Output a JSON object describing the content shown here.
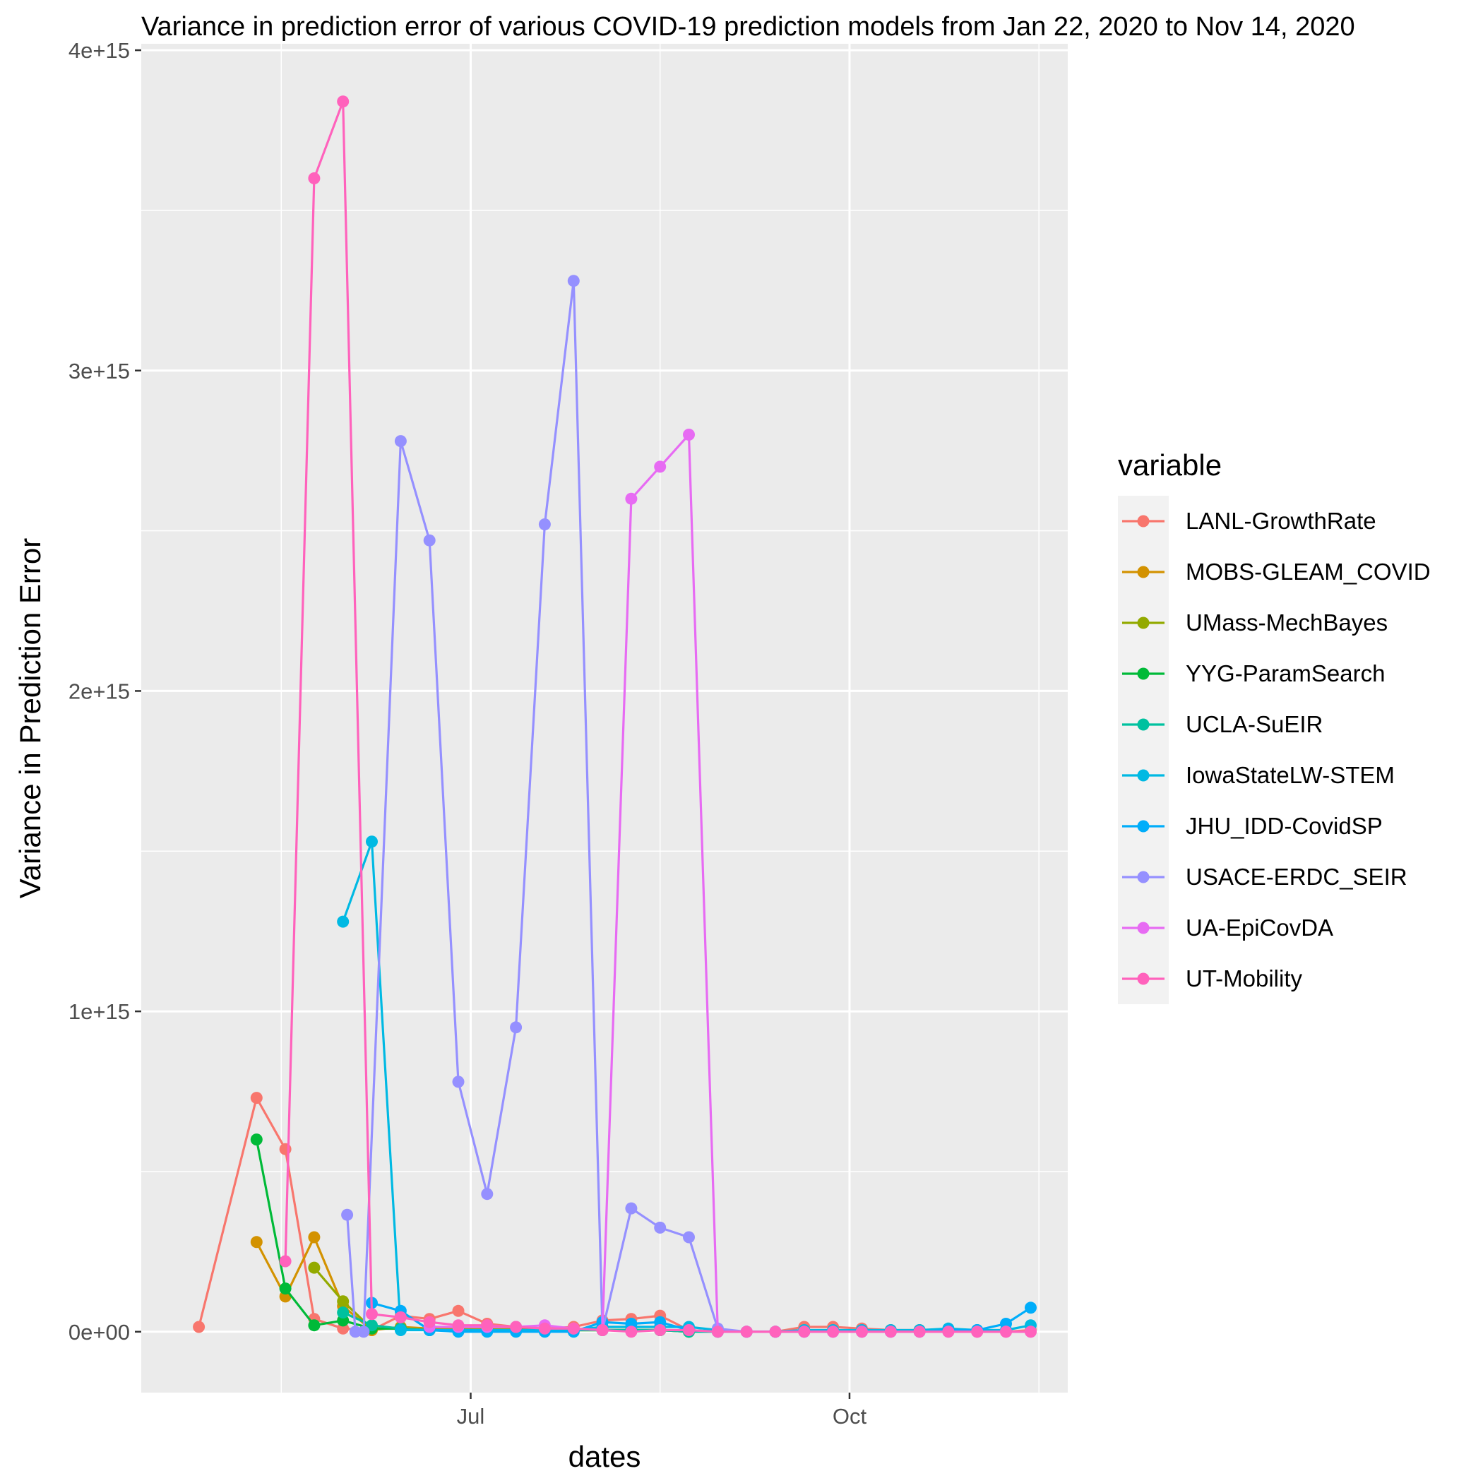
{
  "chart_data": {
    "type": "line",
    "title": "Variance in prediction error of various COVID-19 prediction models from Jan 22, 2020 to Nov 14, 2020",
    "xlabel": "dates",
    "ylabel": "Variance in Prediction Error",
    "xlim": [
      "2020-04-12",
      "2020-11-23"
    ],
    "ylim": [
      -190000000000000.0,
      4020000000000000.0
    ],
    "x_ticks": [
      {
        "date": "2020-07-01",
        "label": "Jul"
      },
      {
        "date": "2020-10-01",
        "label": "Oct"
      }
    ],
    "y_ticks": [
      {
        "value": 0,
        "label": "0e+00"
      },
      {
        "value": 1000000000000000.0,
        "label": "1e+15"
      },
      {
        "value": 2000000000000000.0,
        "label": "2e+15"
      },
      {
        "value": 3000000000000000.0,
        "label": "3e+15"
      },
      {
        "value": 4000000000000000.0,
        "label": "4e+15"
      }
    ],
    "grid": true,
    "legend": {
      "title": "variable",
      "position": "right"
    },
    "series": [
      {
        "name": "LANL-GrowthRate",
        "color": "#F8766D",
        "points": [
          [
            "2020-04-26",
            15000000000000.0
          ],
          [
            "2020-05-10",
            730000000000000.0
          ],
          [
            "2020-05-17",
            570000000000000.0
          ],
          [
            "2020-05-24",
            40000000000000.0
          ],
          [
            "2020-05-31",
            10000000000000.0
          ],
          [
            "2020-06-07",
            5000000000000.0
          ],
          [
            "2020-06-14",
            50000000000000.0
          ],
          [
            "2020-06-21",
            40000000000000.0
          ],
          [
            "2020-06-28",
            65000000000000.0
          ],
          [
            "2020-07-05",
            25000000000000.0
          ],
          [
            "2020-07-12",
            15000000000000.0
          ],
          [
            "2020-07-19",
            10000000000000.0
          ],
          [
            "2020-07-26",
            15000000000000.0
          ],
          [
            "2020-08-02",
            35000000000000.0
          ],
          [
            "2020-08-09",
            40000000000000.0
          ],
          [
            "2020-08-16",
            50000000000000.0
          ],
          [
            "2020-08-23",
            5000000000000.0
          ],
          [
            "2020-08-30",
            0
          ],
          [
            "2020-09-06",
            0
          ],
          [
            "2020-09-13",
            0
          ],
          [
            "2020-09-20",
            15000000000000.0
          ],
          [
            "2020-09-27",
            15000000000000.0
          ],
          [
            "2020-10-04",
            10000000000000.0
          ],
          [
            "2020-10-11",
            5000000000000.0
          ],
          [
            "2020-10-18",
            5000000000000.0
          ],
          [
            "2020-10-25",
            5000000000000.0
          ],
          [
            "2020-11-01",
            0
          ],
          [
            "2020-11-08",
            0
          ],
          [
            "2020-11-14",
            5000000000000.0
          ]
        ]
      },
      {
        "name": "MOBS-GLEAM_COVID",
        "color": "#D39200",
        "points": [
          [
            "2020-05-10",
            280000000000000.0
          ],
          [
            "2020-05-17",
            110000000000000.0
          ],
          [
            "2020-05-24",
            295000000000000.0
          ],
          [
            "2020-05-31",
            80000000000000.0
          ],
          [
            "2020-06-07",
            5000000000000.0
          ],
          [
            "2020-06-14",
            15000000000000.0
          ],
          [
            "2020-06-21",
            10000000000000.0
          ],
          [
            "2020-06-28",
            10000000000000.0
          ],
          [
            "2020-07-05",
            10000000000000.0
          ],
          [
            "2020-07-12",
            10000000000000.0
          ],
          [
            "2020-07-19",
            5000000000000.0
          ],
          [
            "2020-07-26",
            5000000000000.0
          ],
          [
            "2020-08-02",
            5000000000000.0
          ],
          [
            "2020-08-09",
            5000000000000.0
          ],
          [
            "2020-08-16",
            5000000000000.0
          ],
          [
            "2020-08-23",
            0
          ]
        ]
      },
      {
        "name": "UMass-MechBayes",
        "color": "#93AA00",
        "points": [
          [
            "2020-05-24",
            200000000000000.0
          ],
          [
            "2020-05-31",
            95000000000000.0
          ],
          [
            "2020-06-07",
            10000000000000.0
          ],
          [
            "2020-06-14",
            10000000000000.0
          ],
          [
            "2020-06-21",
            5000000000000.0
          ],
          [
            "2020-06-28",
            5000000000000.0
          ],
          [
            "2020-07-05",
            5000000000000.0
          ],
          [
            "2020-07-12",
            5000000000000.0
          ],
          [
            "2020-07-19",
            5000000000000.0
          ],
          [
            "2020-07-26",
            5000000000000.0
          ],
          [
            "2020-08-02",
            5000000000000.0
          ],
          [
            "2020-08-09",
            5000000000000.0
          ],
          [
            "2020-08-16",
            5000000000000.0
          ],
          [
            "2020-08-23",
            0
          ]
        ]
      },
      {
        "name": "YYG-ParamSearch",
        "color": "#00BA38",
        "points": [
          [
            "2020-05-10",
            600000000000000.0
          ],
          [
            "2020-05-17",
            135000000000000.0
          ],
          [
            "2020-05-24",
            20000000000000.0
          ],
          [
            "2020-05-31",
            35000000000000.0
          ],
          [
            "2020-06-07",
            10000000000000.0
          ],
          [
            "2020-06-14",
            10000000000000.0
          ],
          [
            "2020-06-21",
            5000000000000.0
          ],
          [
            "2020-06-28",
            5000000000000.0
          ],
          [
            "2020-07-05",
            5000000000000.0
          ],
          [
            "2020-07-12",
            5000000000000.0
          ],
          [
            "2020-07-19",
            5000000000000.0
          ],
          [
            "2020-07-26",
            5000000000000.0
          ],
          [
            "2020-08-02",
            5000000000000.0
          ],
          [
            "2020-08-09",
            5000000000000.0
          ],
          [
            "2020-08-16",
            5000000000000.0
          ]
        ]
      },
      {
        "name": "UCLA-SuEIR",
        "color": "#00C19F",
        "points": [
          [
            "2020-05-31",
            60000000000000.0
          ],
          [
            "2020-06-07",
            20000000000000.0
          ],
          [
            "2020-06-14",
            10000000000000.0
          ],
          [
            "2020-06-21",
            5000000000000.0
          ],
          [
            "2020-06-28",
            5000000000000.0
          ],
          [
            "2020-07-05",
            5000000000000.0
          ],
          [
            "2020-07-12",
            5000000000000.0
          ],
          [
            "2020-07-19",
            5000000000000.0
          ],
          [
            "2020-07-26",
            5000000000000.0
          ],
          [
            "2020-08-02",
            5000000000000.0
          ],
          [
            "2020-08-09",
            5000000000000.0
          ],
          [
            "2020-08-16",
            5000000000000.0
          ],
          [
            "2020-08-23",
            0
          ],
          [
            "2020-08-30",
            0
          ]
        ]
      },
      {
        "name": "IowaStateLW-STEM",
        "color": "#00B9E3",
        "points": [
          [
            "2020-05-31",
            1280000000000000.0
          ],
          [
            "2020-06-07",
            1530000000000000.0
          ],
          [
            "2020-06-14",
            5000000000000.0
          ],
          [
            "2020-06-21",
            5000000000000.0
          ],
          [
            "2020-06-28",
            5000000000000.0
          ],
          [
            "2020-07-05",
            5000000000000.0
          ],
          [
            "2020-07-12",
            5000000000000.0
          ],
          [
            "2020-07-19",
            5000000000000.0
          ],
          [
            "2020-07-26",
            5000000000000.0
          ],
          [
            "2020-08-02",
            15000000000000.0
          ],
          [
            "2020-08-09",
            15000000000000.0
          ],
          [
            "2020-08-16",
            15000000000000.0
          ],
          [
            "2020-08-23",
            15000000000000.0
          ],
          [
            "2020-08-30",
            5000000000000.0
          ],
          [
            "2020-09-06",
            0
          ],
          [
            "2020-09-13",
            0
          ],
          [
            "2020-09-20",
            5000000000000.0
          ],
          [
            "2020-09-27",
            5000000000000.0
          ],
          [
            "2020-10-04",
            5000000000000.0
          ],
          [
            "2020-10-11",
            5000000000000.0
          ],
          [
            "2020-10-18",
            5000000000000.0
          ],
          [
            "2020-10-25",
            10000000000000.0
          ],
          [
            "2020-11-01",
            5000000000000.0
          ],
          [
            "2020-11-08",
            5000000000000.0
          ],
          [
            "2020-11-14",
            20000000000000.0
          ]
        ]
      },
      {
        "name": "JHU_IDD-CovidSP",
        "color": "#00ADFA",
        "points": [
          [
            "2020-06-07",
            90000000000000.0
          ],
          [
            "2020-06-14",
            65000000000000.0
          ],
          [
            "2020-06-21",
            5000000000000.0
          ],
          [
            "2020-06-28",
            0
          ],
          [
            "2020-07-05",
            0
          ],
          [
            "2020-07-12",
            0
          ],
          [
            "2020-07-19",
            0
          ],
          [
            "2020-07-26",
            0
          ],
          [
            "2020-08-02",
            30000000000000.0
          ],
          [
            "2020-08-09",
            25000000000000.0
          ],
          [
            "2020-08-16",
            30000000000000.0
          ],
          [
            "2020-08-23",
            5000000000000.0
          ],
          [
            "2020-08-30",
            0
          ],
          [
            "2020-09-06",
            0
          ],
          [
            "2020-09-13",
            0
          ],
          [
            "2020-09-20",
            0
          ],
          [
            "2020-09-27",
            0
          ],
          [
            "2020-10-04",
            0
          ],
          [
            "2020-10-11",
            0
          ],
          [
            "2020-10-18",
            0
          ],
          [
            "2020-10-25",
            5000000000000.0
          ],
          [
            "2020-11-01",
            5000000000000.0
          ],
          [
            "2020-11-08",
            25000000000000.0
          ],
          [
            "2020-11-14",
            75000000000000.0
          ]
        ]
      },
      {
        "name": "USACE-ERDC_SEIR",
        "color": "#9590FF",
        "points": [
          [
            "2020-06-01",
            365000000000000.0
          ],
          [
            "2020-06-03",
            0
          ],
          [
            "2020-06-05",
            0
          ],
          [
            "2020-06-14",
            2780000000000000.0
          ],
          [
            "2020-06-21",
            2470000000000000.0
          ],
          [
            "2020-06-28",
            780000000000000.0
          ],
          [
            "2020-07-05",
            430000000000000.0
          ],
          [
            "2020-07-12",
            950000000000000.0
          ],
          [
            "2020-07-19",
            2520000000000000.0
          ],
          [
            "2020-07-26",
            3280000000000000.0
          ],
          [
            "2020-08-02",
            5000000000000.0
          ],
          [
            "2020-08-09",
            385000000000000.0
          ],
          [
            "2020-08-16",
            325000000000000.0
          ],
          [
            "2020-08-23",
            295000000000000.0
          ],
          [
            "2020-08-30",
            10000000000000.0
          ],
          [
            "2020-09-06",
            0
          ]
        ]
      },
      {
        "name": "UA-EpiCovDA",
        "color": "#E76BF3",
        "points": [
          [
            "2020-06-21",
            15000000000000.0
          ],
          [
            "2020-06-28",
            15000000000000.0
          ],
          [
            "2020-07-05",
            15000000000000.0
          ],
          [
            "2020-07-12",
            15000000000000.0
          ],
          [
            "2020-07-19",
            20000000000000.0
          ],
          [
            "2020-07-26",
            10000000000000.0
          ],
          [
            "2020-08-02",
            5000000000000.0
          ],
          [
            "2020-08-09",
            2600000000000000.0
          ],
          [
            "2020-08-16",
            2700000000000000.0
          ],
          [
            "2020-08-23",
            2800000000000000.0
          ],
          [
            "2020-08-30",
            0
          ],
          [
            "2020-09-06",
            0
          ],
          [
            "2020-09-13",
            0
          ],
          [
            "2020-09-20",
            0
          ],
          [
            "2020-09-27",
            0
          ],
          [
            "2020-10-04",
            0
          ],
          [
            "2020-10-11",
            0
          ],
          [
            "2020-10-18",
            0
          ],
          [
            "2020-10-25",
            0
          ],
          [
            "2020-11-01",
            0
          ],
          [
            "2020-11-08",
            0
          ],
          [
            "2020-11-14",
            0
          ]
        ]
      },
      {
        "name": "UT-Mobility",
        "color": "#FF62BC",
        "points": [
          [
            "2020-05-17",
            220000000000000.0
          ],
          [
            "2020-05-24",
            3600000000000000.0
          ],
          [
            "2020-05-31",
            3840000000000000.0
          ],
          [
            "2020-06-07",
            55000000000000.0
          ],
          [
            "2020-06-14",
            45000000000000.0
          ],
          [
            "2020-06-21",
            30000000000000.0
          ],
          [
            "2020-06-28",
            20000000000000.0
          ],
          [
            "2020-07-05",
            20000000000000.0
          ],
          [
            "2020-07-12",
            15000000000000.0
          ],
          [
            "2020-07-19",
            10000000000000.0
          ],
          [
            "2020-07-26",
            10000000000000.0
          ],
          [
            "2020-08-02",
            5000000000000.0
          ],
          [
            "2020-08-09",
            0
          ],
          [
            "2020-08-16",
            5000000000000.0
          ],
          [
            "2020-08-23",
            5000000000000.0
          ],
          [
            "2020-08-30",
            0
          ],
          [
            "2020-09-06",
            0
          ],
          [
            "2020-09-13",
            0
          ],
          [
            "2020-09-20",
            0
          ],
          [
            "2020-09-27",
            0
          ],
          [
            "2020-10-04",
            0
          ],
          [
            "2020-10-11",
            0
          ],
          [
            "2020-10-18",
            0
          ],
          [
            "2020-10-25",
            0
          ],
          [
            "2020-11-01",
            0
          ],
          [
            "2020-11-08",
            0
          ],
          [
            "2020-11-14",
            0
          ]
        ]
      }
    ]
  }
}
